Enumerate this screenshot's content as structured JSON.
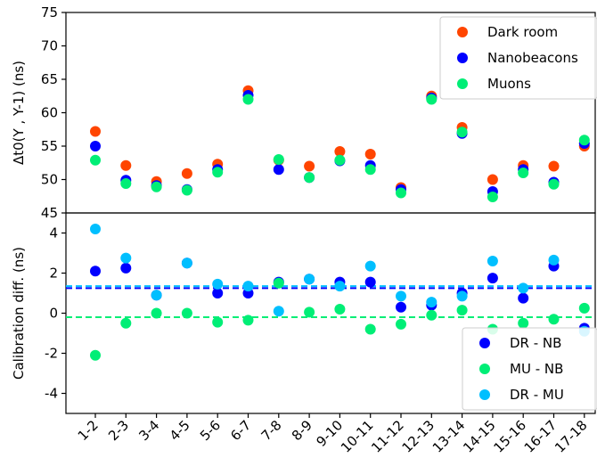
{
  "chart_data": [
    {
      "type": "scatter",
      "ylabel": "Δt0(Y , Y-1) (ns)",
      "xlabel": "",
      "ylim": [
        45,
        75
      ],
      "yticks": [
        45,
        50,
        55,
        60,
        65,
        70,
        75
      ],
      "categories": [
        "1-2",
        "2-3",
        "3-4",
        "4-5",
        "5-6",
        "6-7",
        "7-8",
        "8-9",
        "9-10",
        "10-11",
        "11-12",
        "12-13",
        "13-14",
        "14-15",
        "15-16",
        "16-17",
        "17-18"
      ],
      "legend_position": "top-right",
      "grid": false,
      "series": [
        {
          "name": "Dark room",
          "color": "#ff4500",
          "values": [
            57.2,
            52.1,
            49.7,
            50.9,
            52.3,
            63.3,
            52.9,
            52.0,
            54.2,
            53.8,
            48.8,
            62.5,
            57.8,
            50.0,
            52.1,
            52.0,
            55.0
          ]
        },
        {
          "name": "Nanobeacons",
          "color": "#0000ff",
          "values": [
            55.0,
            49.9,
            49.1,
            48.5,
            51.5,
            62.6,
            51.5,
            50.3,
            52.8,
            52.1,
            48.5,
            62.2,
            56.9,
            48.2,
            51.5,
            49.6,
            55.4
          ]
        },
        {
          "name": "Muons",
          "color": "#00ee76",
          "values": [
            52.9,
            49.4,
            48.9,
            48.4,
            51.1,
            62.0,
            53.0,
            50.3,
            52.9,
            51.5,
            48.0,
            62.0,
            57.1,
            47.4,
            51.0,
            49.3,
            55.9
          ]
        }
      ]
    },
    {
      "type": "scatter",
      "ylabel": "Calibration diff. (ns)",
      "xlabel": "",
      "ylim": [
        -5,
        5
      ],
      "yticks": [
        -4,
        -2,
        0,
        2,
        4
      ],
      "categories": [
        "1-2",
        "2-3",
        "3-4",
        "4-5",
        "5-6",
        "6-7",
        "7-8",
        "8-9",
        "9-10",
        "10-11",
        "11-12",
        "12-13",
        "13-14",
        "14-15",
        "15-16",
        "16-17",
        "17-18"
      ],
      "legend_position": "bottom-right",
      "grid": false,
      "series": [
        {
          "name": "DR - NB",
          "color": "#0000ff",
          "values": [
            2.1,
            2.25,
            0.9,
            2.5,
            1.0,
            1.0,
            1.55,
            1.7,
            1.55,
            1.55,
            0.3,
            0.4,
            1.0,
            1.75,
            0.75,
            2.35,
            -0.75
          ],
          "mean": 1.25
        },
        {
          "name": "MU - NB",
          "color": "#00ee76",
          "values": [
            -2.1,
            -0.5,
            0.0,
            0.0,
            -0.45,
            -0.35,
            1.5,
            0.05,
            0.2,
            -0.8,
            -0.55,
            -0.1,
            0.15,
            -0.8,
            -0.5,
            -0.3,
            0.25
          ],
          "mean": -0.2
        },
        {
          "name": "DR - MU",
          "color": "#00bfff",
          "values": [
            4.2,
            2.75,
            0.9,
            2.5,
            1.45,
            1.35,
            0.1,
            1.7,
            1.35,
            2.35,
            0.85,
            0.55,
            0.85,
            2.6,
            1.25,
            2.65,
            -0.9
          ],
          "mean": 1.35
        }
      ]
    }
  ]
}
